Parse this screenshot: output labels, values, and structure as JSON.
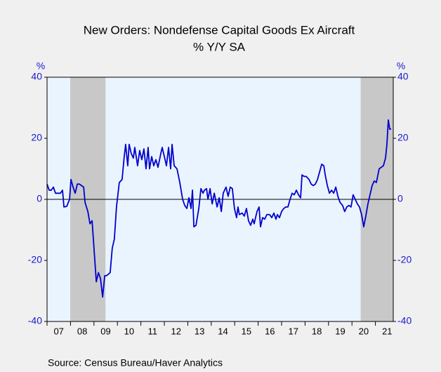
{
  "chart_data": {
    "type": "line",
    "title": "New Orders: Nondefense Capital Goods Ex Aircraft",
    "subtitle": "% Y/Y   SA",
    "y_unit": "%",
    "y2_unit": "%",
    "source": "Source:  Census Bureau/Haver Analytics",
    "color": "#0000cc",
    "x": [
      2007.0,
      2007.09,
      2007.18,
      2007.27,
      2007.36,
      2007.48,
      2007.57,
      2007.66,
      2007.72,
      2007.84,
      2007.96,
      2008.02,
      2008.11,
      2008.2,
      2008.29,
      2008.38,
      2008.56,
      2008.62,
      2008.74,
      2008.83,
      2008.92,
      2009.01,
      2009.1,
      2009.19,
      2009.28,
      2009.37,
      2009.46,
      2009.54,
      2009.69,
      2009.78,
      2009.87,
      2009.96,
      2010.08,
      2010.2,
      2010.29,
      2010.35,
      2010.44,
      2010.5,
      2010.59,
      2010.68,
      2010.74,
      2010.86,
      2010.95,
      2011.04,
      2011.13,
      2011.22,
      2011.31,
      2011.37,
      2011.46,
      2011.55,
      2011.64,
      2011.73,
      2011.85,
      2011.91,
      2012.0,
      2012.09,
      2012.18,
      2012.27,
      2012.33,
      2012.42,
      2012.54,
      2012.66,
      2012.78,
      2012.87,
      2012.96,
      2013.05,
      2013.14,
      2013.2,
      2013.26,
      2013.35,
      2013.47,
      2013.56,
      2013.65,
      2013.71,
      2013.8,
      2013.86,
      2013.95,
      2014.04,
      2014.13,
      2014.25,
      2014.34,
      2014.43,
      2014.51,
      2014.63,
      2014.72,
      2014.81,
      2014.9,
      2014.99,
      2015.08,
      2015.14,
      2015.2,
      2015.32,
      2015.41,
      2015.5,
      2015.59,
      2015.68,
      2015.77,
      2015.83,
      2015.95,
      2016.04,
      2016.1,
      2016.19,
      2016.28,
      2016.37,
      2016.49,
      2016.58,
      2016.67,
      2016.76,
      2016.82,
      2016.91,
      2017.0,
      2017.09,
      2017.18,
      2017.27,
      2017.36,
      2017.45,
      2017.54,
      2017.63,
      2017.72,
      2017.81,
      2017.87,
      2017.96,
      2018.05,
      2018.17,
      2018.26,
      2018.35,
      2018.44,
      2018.53,
      2018.62,
      2018.71,
      2018.8,
      2018.86,
      2018.95,
      2019.04,
      2019.13,
      2019.22,
      2019.31,
      2019.4,
      2019.49,
      2019.6,
      2019.69,
      2019.78,
      2019.87,
      2019.96,
      2020.05,
      2020.14,
      2020.23,
      2020.32,
      2020.41,
      2020.5,
      2020.59,
      2020.68,
      2020.77,
      2020.86,
      2020.95,
      2021.04,
      2021.16,
      2021.25,
      2021.34,
      2021.43,
      2021.49,
      2021.55,
      2021.61,
      2021.67
    ],
    "values": [
      5,
      3,
      3,
      4,
      2,
      2,
      2,
      3,
      -2.5,
      -2.3,
      0,
      6.5,
      4,
      2,
      5,
      5,
      4,
      -1,
      -4,
      -8,
      -7,
      -17,
      -27,
      -24,
      -26,
      -32,
      -25,
      -25,
      -24,
      -16,
      -13,
      -2.5,
      5.5,
      6.5,
      14,
      18,
      11,
      18,
      15,
      13.5,
      17,
      11,
      16,
      13,
      16.5,
      10,
      17,
      10,
      14,
      11,
      13,
      10.5,
      15,
      17,
      14,
      11,
      17,
      10,
      18,
      11,
      10,
      5.5,
      0,
      -2,
      -3,
      0.5,
      -3,
      3,
      -9,
      -8.5,
      -3,
      3.5,
      2,
      3,
      3.5,
      0,
      3.5,
      -1.5,
      2,
      -2.5,
      0.5,
      -4,
      2,
      4,
      1,
      4,
      3.5,
      -3,
      -6,
      -2.5,
      -5,
      -4.5,
      -5.5,
      -3,
      -7,
      -8.5,
      -6.5,
      -8,
      -4,
      -2.5,
      -9,
      -6,
      -6.5,
      -5,
      -5,
      -6,
      -4.5,
      -6.5,
      -5,
      -6,
      -4,
      -3,
      -2.5,
      -2.5,
      0,
      2,
      1.5,
      3,
      1.5,
      0.5,
      8,
      7.5,
      7.5,
      6.5,
      5,
      4.5,
      5,
      6.5,
      9,
      11.5,
      11,
      8,
      4.5,
      2,
      3,
      2,
      4,
      1,
      -1,
      -2,
      -4,
      -2.5,
      -2,
      -2.5,
      1.5,
      0,
      -1.5,
      -2.5,
      -5,
      -9,
      -5.5,
      -1.5,
      1.5,
      4.5,
      6,
      5.5,
      10,
      10.5,
      11,
      13.5,
      18,
      26,
      23,
      23
    ],
    "xlim": [
      2007,
      2021.76
    ],
    "xticks": [
      {
        "value": 2007,
        "label": "07"
      },
      {
        "value": 2008,
        "label": "08"
      },
      {
        "value": 2009,
        "label": "09"
      },
      {
        "value": 2010,
        "label": "10"
      },
      {
        "value": 2011,
        "label": "11"
      },
      {
        "value": 2012,
        "label": "12"
      },
      {
        "value": 2013,
        "label": "13"
      },
      {
        "value": 2014,
        "label": "14"
      },
      {
        "value": 2015,
        "label": "15"
      },
      {
        "value": 2016,
        "label": "16"
      },
      {
        "value": 2017,
        "label": "17"
      },
      {
        "value": 2018,
        "label": "18"
      },
      {
        "value": 2019,
        "label": "19"
      },
      {
        "value": 2020,
        "label": "20"
      },
      {
        "value": 2021,
        "label": "21"
      }
    ],
    "ylim": [
      -40,
      40
    ],
    "yticks": [
      40,
      20,
      0,
      -20,
      -40
    ],
    "y2lim": [
      -40,
      40
    ],
    "y2ticks": [
      40,
      20,
      0,
      -20,
      -40
    ],
    "shaded_periods": [
      [
        2007.99,
        2009.49
      ],
      [
        2020.37,
        2021.76
      ]
    ],
    "shade_color": "#c8c8c8",
    "plot_background": "#eaf4ff"
  }
}
